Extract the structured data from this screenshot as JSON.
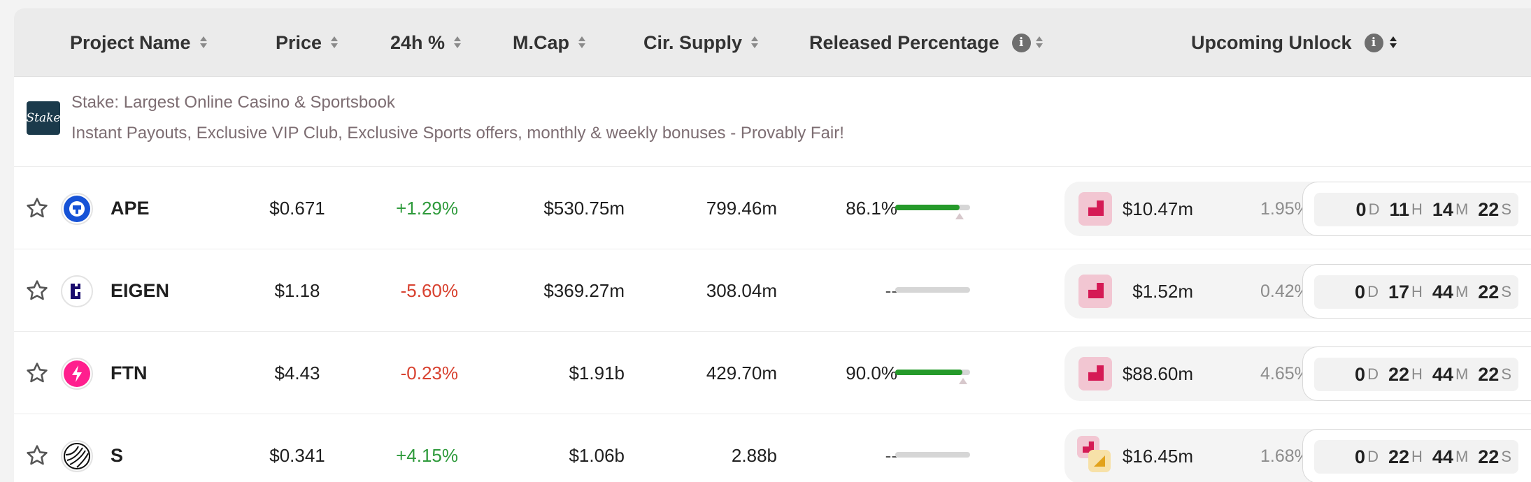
{
  "header": {
    "project_name": "Project Name",
    "price": "Price",
    "change_24h": "24h %",
    "mcap": "M.Cap",
    "cir_supply": "Cir. Supply",
    "released_percentage": "Released Percentage",
    "upcoming_unlock": "Upcoming Unlock",
    "info_glyph": "i"
  },
  "ad": {
    "logo_text": "Stake",
    "title": "Stake: Largest Online Casino & Sportsbook",
    "description": "Instant Payouts, Exclusive VIP Club, Exclusive Sports offers, monthly & weekly bonuses - Provably Fair!"
  },
  "rows": [
    {
      "symbol": "APE",
      "price": "$0.671",
      "change": "+1.29%",
      "change_direction": "up",
      "mcap": "$530.75m",
      "supply": "799.46m",
      "released": "86.1%",
      "released_fraction": 0.861,
      "unlock": {
        "amount": "$10.47m",
        "percent": "1.95%",
        "d": "0",
        "h": "11",
        "m": "14",
        "s": "22"
      }
    },
    {
      "symbol": "EIGEN",
      "price": "$1.18",
      "change": "-5.60%",
      "change_direction": "down",
      "mcap": "$369.27m",
      "supply": "308.04m",
      "released": "--",
      "released_fraction": null,
      "unlock": {
        "amount": "$1.52m",
        "percent": "0.42%",
        "d": "0",
        "h": "17",
        "m": "44",
        "s": "22"
      }
    },
    {
      "symbol": "FTN",
      "price": "$4.43",
      "change": "-0.23%",
      "change_direction": "down",
      "mcap": "$1.91b",
      "supply": "429.70m",
      "released": "90.0%",
      "released_fraction": 0.9,
      "unlock": {
        "amount": "$88.60m",
        "percent": "4.65%",
        "d": "0",
        "h": "22",
        "m": "44",
        "s": "22"
      }
    },
    {
      "symbol": "S",
      "price": "$0.341",
      "change": "+4.15%",
      "change_direction": "up",
      "mcap": "$1.06b",
      "supply": "2.88b",
      "released": "--",
      "released_fraction": null,
      "unlock": {
        "amount": "$16.45m",
        "percent": "1.68%",
        "d": "0",
        "h": "22",
        "m": "44",
        "s": "22"
      }
    }
  ],
  "timer_units": {
    "d": "D",
    "h": "H",
    "m": "M",
    "s": "S"
  },
  "colors": {
    "positive": "#2e9a3b",
    "negative": "#d8412f",
    "progress": "#259a2a",
    "unlock_accent": "#d51a55",
    "header_bg": "#ebebeb"
  },
  "icons": {
    "star": "star-outline-icon",
    "ape": "apecoin-logo-icon",
    "eigen": "eigenlayer-logo-icon",
    "ftn": "fasttoken-lightning-icon",
    "s": "sonic-logo-icon",
    "unlock": "unlock-type-icon"
  }
}
